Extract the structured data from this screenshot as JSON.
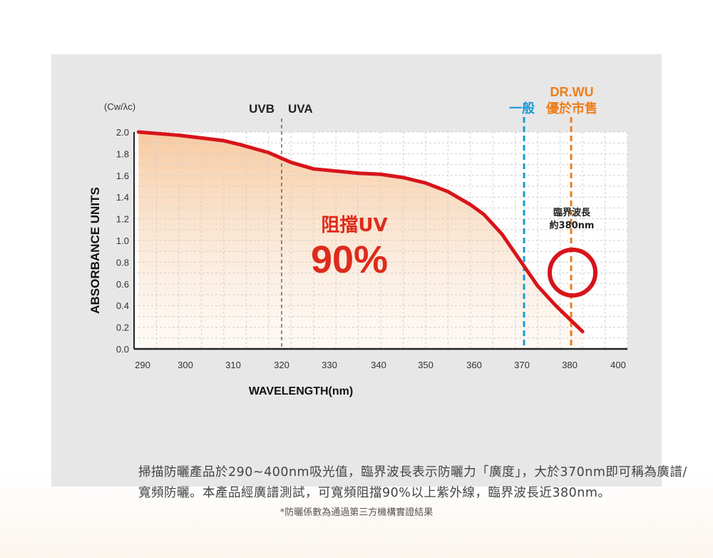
{
  "chart_data": {
    "type": "area",
    "ylabel": "ABSORBANCE UNITS",
    "y_unit": "(Cw/λc)",
    "xlabel": "WAVELENGTH(nm)",
    "xlim": [
      290,
      400
    ],
    "ylim": [
      0,
      2.0
    ],
    "x_ticks": [
      "290",
      "300",
      "310",
      "320",
      "330",
      "340",
      "350",
      "360",
      "370",
      "380",
      "400"
    ],
    "y_ticks": [
      "0.0",
      "0.2",
      "0.4",
      "0.6",
      "0.8",
      "1.0",
      "1.2",
      "1.4",
      "1.6",
      "1.8",
      "2.0"
    ],
    "grid": true,
    "series": [
      {
        "x": [
          291,
          300,
          310,
          314,
          320,
          325,
          330,
          340,
          345,
          350,
          355,
          360,
          365,
          368,
          372,
          376,
          380,
          384,
          388,
          390
        ],
        "y": [
          2.0,
          1.97,
          1.92,
          1.88,
          1.81,
          1.72,
          1.66,
          1.62,
          1.61,
          1.58,
          1.53,
          1.45,
          1.33,
          1.24,
          1.06,
          0.82,
          0.58,
          0.4,
          0.24,
          0.16
        ]
      }
    ],
    "reference_lines": [
      {
        "x": 320,
        "label_left": "UVB",
        "label_right": "UVA",
        "color": "#444444"
      },
      {
        "x": 370,
        "label": "一般",
        "color": "#1a9ad6"
      },
      {
        "x": 380,
        "label_top": "DR.WU",
        "label": "優於市售",
        "color": "#ef7d1a"
      }
    ],
    "annotations": {
      "block_label": "阻擋UV",
      "block_value": "90%",
      "critical_label_1": "臨界波長",
      "critical_label_2": "約380nm"
    },
    "colors": {
      "curve": "#d7141a",
      "fill_top": "#f7c79b",
      "circle": "#d7141a",
      "uvb_uva": "#333333",
      "normal": "#1a9ad6",
      "drwu": "#ef7d1a",
      "text_red": "#dd2b1c"
    }
  },
  "description": "掃描防曬產品於290~400nm吸光值，臨界波長表示防曬力「廣度」，大於370nm即可稱為廣譜/寬頻防曬。本產品經廣譜測試，可寬頻阻擋90%以上紫外線，臨界波長近380nm。",
  "footnote": "*防曬係數為通過第三方機構實證結果"
}
